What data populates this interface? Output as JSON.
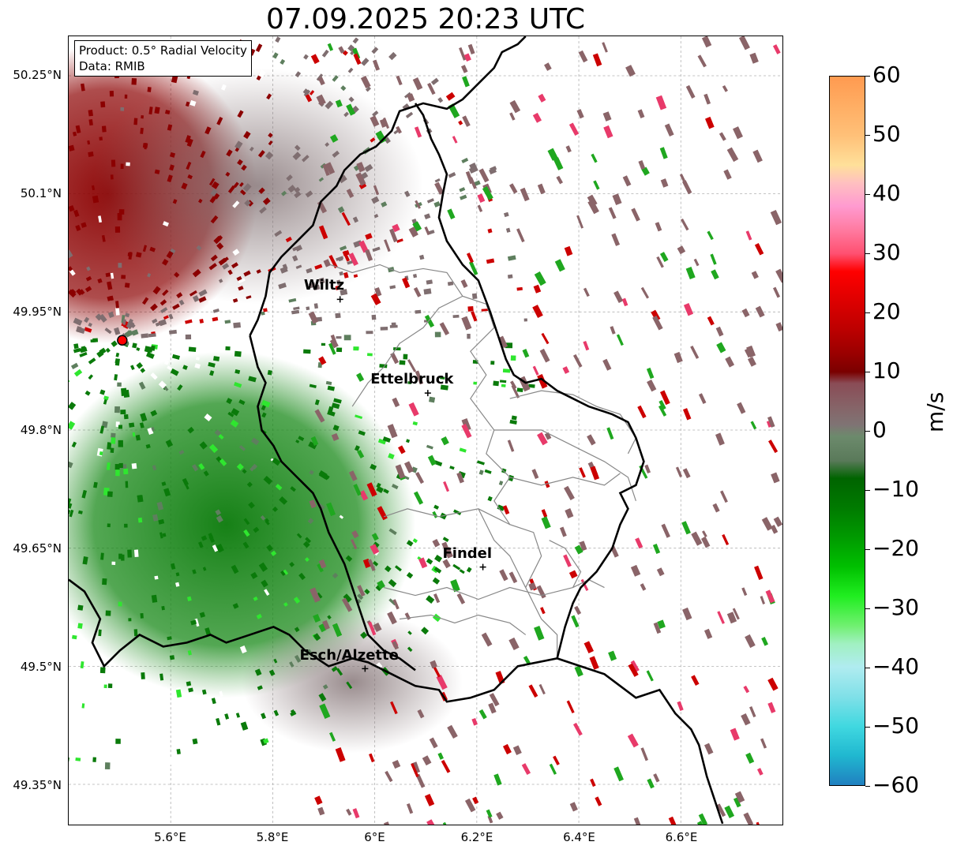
{
  "title": "07.09.2025 20:23 UTC",
  "info": {
    "product": "Product: 0.5° Radial Velocity",
    "data": "Data: RMIB"
  },
  "map": {
    "lat_ticks": [
      "50.25°N",
      "50.1°N",
      "49.95°N",
      "49.8°N",
      "49.65°N",
      "49.5°N",
      "49.35°N"
    ],
    "lon_ticks": [
      "5.6°E",
      "5.8°E",
      "6°E",
      "6.2°E",
      "6.4°E",
      "6.6°E"
    ],
    "lon_range": [
      5.4,
      6.8
    ],
    "lat_range": [
      49.3,
      50.3
    ],
    "radar_site": {
      "lon": 5.505,
      "lat": 49.914
    },
    "cities": [
      {
        "name": "Wiltz",
        "lon": 5.932,
        "lat": 49.966
      },
      {
        "name": "Ettelbruck",
        "lon": 6.104,
        "lat": 49.847
      },
      {
        "name": "Findel",
        "lon": 6.212,
        "lat": 49.626
      },
      {
        "name": "Esch/Alzette",
        "lon": 5.981,
        "lat": 49.497
      }
    ]
  },
  "colorbar": {
    "label": "m/s",
    "min": -60,
    "max": 60,
    "ticks": [
      "60",
      "50",
      "40",
      "30",
      "20",
      "10",
      "0",
      "−10",
      "−20",
      "−30",
      "−40",
      "−50",
      "−60"
    ]
  },
  "colors": {
    "approaching_green": "#0a7a0a",
    "receding_red": "#8b0000",
    "near_zero": "#7f6e70",
    "border": "#000000",
    "admin": "#888888"
  }
}
